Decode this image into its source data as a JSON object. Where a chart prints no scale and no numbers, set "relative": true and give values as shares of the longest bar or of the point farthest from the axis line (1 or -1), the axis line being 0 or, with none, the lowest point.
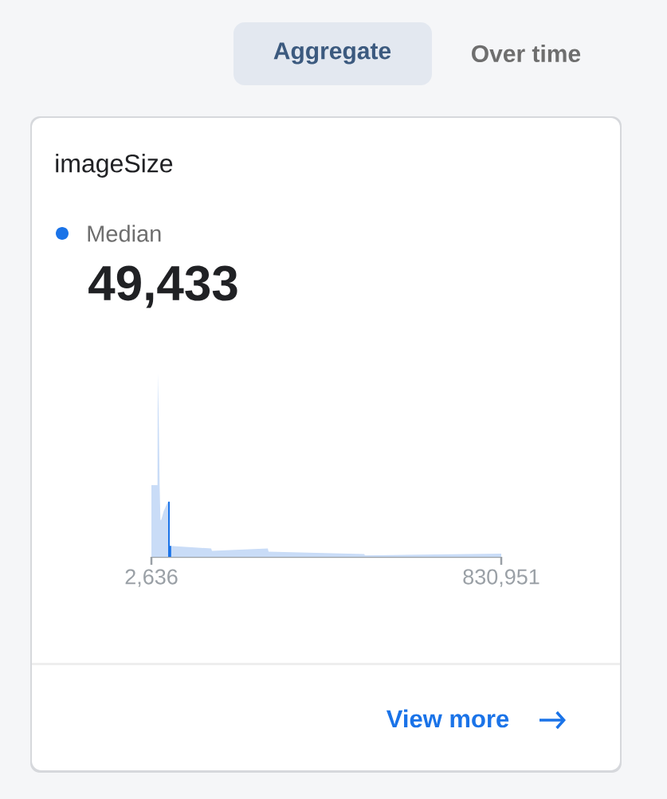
{
  "chart_data": {
    "type": "area",
    "title": "imageSize",
    "relative": true,
    "annotations": [
      "Aggregate",
      "Over time",
      "49,433",
      "View more"
    ],
    "xlim": [
      2636,
      830951
    ],
    "xticks": [
      {
        "value": 2636,
        "label": "2,636"
      },
      {
        "value": 830951,
        "label": "830,951"
      }
    ],
    "tick_labels": "x",
    "legend": "top left",
    "series": [
      {
        "color": "#c9dcf7",
        "x": [
          2636,
          17000,
          17730,
          20000,
          22000,
          24000,
          26000,
          32000,
          40000,
          42259,
          46033,
          144146,
          146033,
          278110,
          279997,
          506413,
          508300,
          830951
        ],
        "values": [
          0.39,
          0.39,
          1.0,
          0.75,
          0.4,
          0.2,
          0.2,
          0.25,
          0.29,
          0.3,
          0.06,
          0.045,
          0.032,
          0.045,
          0.028,
          0.015,
          0.008,
          0.017
        ]
      },
      {
        "name": "Median",
        "color": "#1a73e8",
        "x": [
          42259,
          46033,
          46034,
          49433
        ],
        "values": [
          0.3,
          0.3,
          0.06,
          0.06
        ]
      }
    ]
  }
}
